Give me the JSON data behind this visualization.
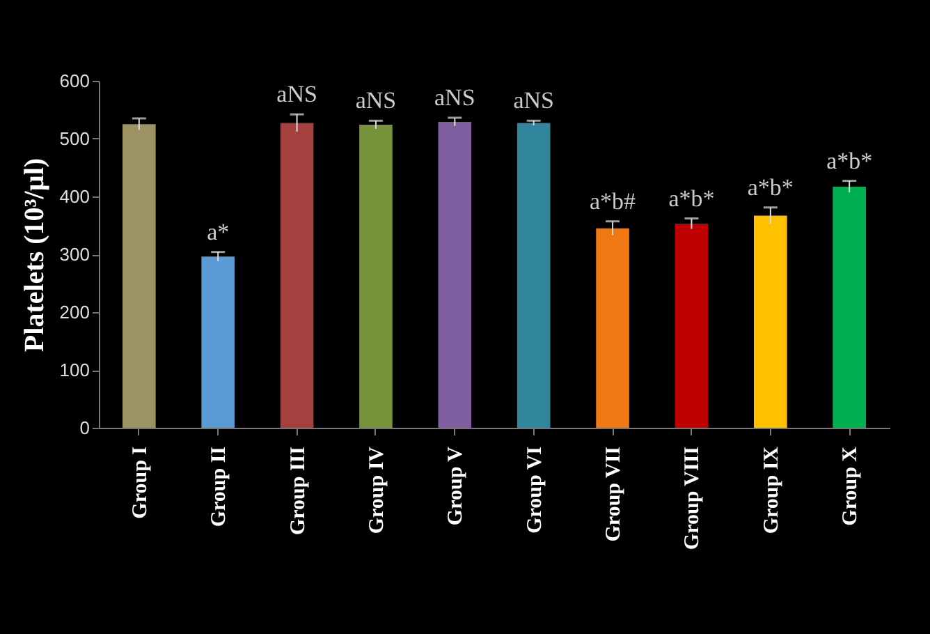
{
  "chart_data": {
    "type": "bar",
    "ylabel": "Platelets (10³/µl)",
    "categories": [
      "Group I",
      "Group II",
      "Group III",
      "Group IV",
      "Group V",
      "Group VI",
      "Group VII",
      "Group VIII",
      "Group IX",
      "Group X"
    ],
    "values": [
      525,
      296,
      527,
      524,
      529,
      527,
      345,
      353,
      367,
      417
    ],
    "errors": [
      10,
      8,
      15,
      7,
      7,
      4,
      12,
      9,
      14,
      10
    ],
    "colors": [
      "#9b9462",
      "#5b9bd5",
      "#a5403f",
      "#77933c",
      "#7f5f9f",
      "#31859c",
      "#f07814",
      "#c00000",
      "#ffc000",
      "#00b050"
    ],
    "ylim": [
      0,
      600
    ],
    "yticks": [
      0,
      100,
      200,
      300,
      400,
      500,
      600
    ],
    "grid": false,
    "annotations": [
      {
        "text": "a*",
        "x": "Group II",
        "y": 304
      },
      {
        "text": "aNS",
        "x": "Group III",
        "y": 542
      },
      {
        "text": "aNS",
        "x": "Group IV",
        "y": 531
      },
      {
        "text": "aNS",
        "x": "Group V",
        "y": 536
      },
      {
        "text": "aNS",
        "x": "Group VI",
        "y": 531
      },
      {
        "text": "a*b#",
        "x": "Group VII",
        "y": 357
      },
      {
        "text": "a*b*",
        "x": "Group VIII",
        "y": 362
      },
      {
        "text": "a*b*",
        "x": "Group IX",
        "y": 381
      },
      {
        "text": "a*b*",
        "x": "Group X",
        "y": 427
      }
    ]
  }
}
